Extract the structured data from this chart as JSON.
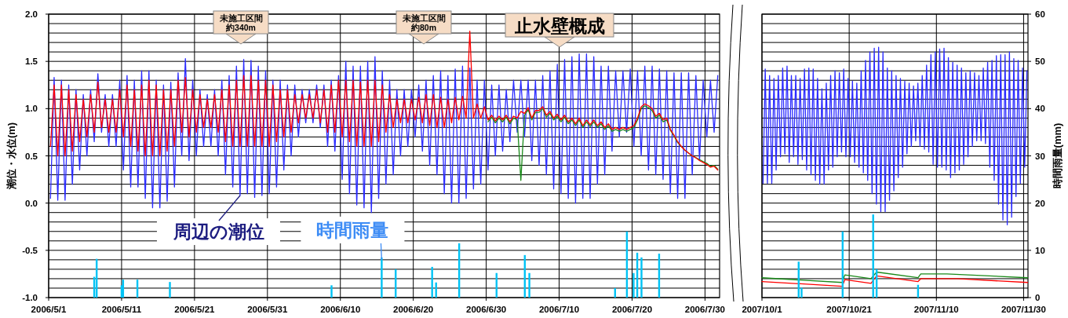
{
  "chart_data": [
    {
      "type": "line",
      "ylabel": "潮位・水位(m)",
      "xlim": [
        "2006-05-01",
        "2006-08-01"
      ],
      "ylim": [
        -1,
        2
      ],
      "y2lim": [
        0,
        60
      ],
      "grid": true,
      "xticks": [
        {
          "value": "2006-05-01",
          "label": "2006/5/1"
        },
        {
          "value": "2006-05-11",
          "label": "2006/5/11"
        },
        {
          "value": "2006-05-21",
          "label": "2006/5/21"
        },
        {
          "value": "2006-05-31",
          "label": "2006/5/31"
        },
        {
          "value": "2006-06-10",
          "label": "2006/6/10"
        },
        {
          "value": "2006-06-20",
          "label": "2006/6/20"
        },
        {
          "value": "2006-06-30",
          "label": "2006/6/30"
        },
        {
          "value": "2006-07-10",
          "label": "2006/7/10"
        },
        {
          "value": "2006-07-20",
          "label": "2006/7/20"
        },
        {
          "value": "2006-07-30",
          "label": "2006/7/30"
        }
      ],
      "yticks": [
        {
          "value": -1,
          "label": "-1.0"
        },
        {
          "value": -0.9,
          "label": null
        },
        {
          "value": -0.8,
          "label": null
        },
        {
          "value": -0.7,
          "label": null
        },
        {
          "value": -0.6,
          "label": null
        },
        {
          "value": -0.5,
          "label": "-0.5"
        },
        {
          "value": -0.4,
          "label": null
        },
        {
          "value": -0.3,
          "label": null
        },
        {
          "value": -0.2,
          "label": null
        },
        {
          "value": -0.1,
          "label": null
        },
        {
          "value": 0,
          "label": "0.0"
        },
        {
          "value": 0.1,
          "label": null
        },
        {
          "value": 0.2,
          "label": null
        },
        {
          "value": 0.3,
          "label": null
        },
        {
          "value": 0.4,
          "label": null
        },
        {
          "value": 0.5,
          "label": "0.5"
        },
        {
          "value": 0.6,
          "label": null
        },
        {
          "value": 0.7,
          "label": null
        },
        {
          "value": 0.8,
          "label": null
        },
        {
          "value": 0.9,
          "label": null
        },
        {
          "value": 1,
          "label": "1.0"
        },
        {
          "value": 1.1,
          "label": null
        },
        {
          "value": 1.2,
          "label": null
        },
        {
          "value": 1.3,
          "label": null
        },
        {
          "value": 1.4,
          "label": null
        },
        {
          "value": 1.5,
          "label": "1.5"
        },
        {
          "value": 1.6,
          "label": null
        },
        {
          "value": 1.7,
          "label": null
        },
        {
          "value": 1.8,
          "label": null
        },
        {
          "value": 1.9,
          "label": null
        },
        {
          "value": 2,
          "label": "2.0"
        }
      ],
      "x": [
        "2006-05-01T06:00",
        "2006-05-01T18:00",
        "2006-05-02T06:00",
        "2006-05-02T18:00",
        "2006-05-03T06:00",
        "2006-05-03T18:00",
        "2006-05-04T06:00",
        "2006-05-04T18:00",
        "2006-05-05T06:00",
        "2006-05-05T18:00",
        "2006-05-06T06:00",
        "2006-05-06T18:00",
        "2006-05-07T06:00",
        "2006-05-07T18:00",
        "2006-05-08T06:00",
        "2006-05-08T18:00",
        "2006-05-09T06:00",
        "2006-05-09T18:00",
        "2006-05-10T06:00",
        "2006-05-10T18:00",
        "2006-05-11T06:00",
        "2006-05-11T18:00",
        "2006-05-12T06:00",
        "2006-05-12T18:00",
        "2006-05-13T06:00",
        "2006-05-13T18:00",
        "2006-05-14T06:00",
        "2006-05-14T18:00",
        "2006-05-15T06:00",
        "2006-05-15T18:00",
        "2006-05-16T06:00",
        "2006-05-16T18:00",
        "2006-05-17T06:00",
        "2006-05-17T18:00",
        "2006-05-18T06:00",
        "2006-05-18T18:00",
        "2006-05-19T06:00",
        "2006-05-19T18:00",
        "2006-05-20T06:00",
        "2006-05-20T18:00",
        "2006-05-21T06:00",
        "2006-05-21T18:00",
        "2006-05-22T06:00",
        "2006-05-22T18:00",
        "2006-05-23T06:00",
        "2006-05-23T18:00",
        "2006-05-24T06:00",
        "2006-05-24T18:00",
        "2006-05-25T06:00",
        "2006-05-25T18:00",
        "2006-05-26T06:00",
        "2006-05-26T18:00",
        "2006-05-27T06:00",
        "2006-05-27T18:00",
        "2006-05-28T06:00",
        "2006-05-28T18:00",
        "2006-05-29T06:00",
        "2006-05-29T18:00",
        "2006-05-30T06:00",
        "2006-05-30T18:00",
        "2006-05-31T06:00",
        "2006-05-31T18:00",
        "2006-06-01T06:00",
        "2006-06-01T18:00",
        "2006-06-02T06:00",
        "2006-06-02T18:00",
        "2006-06-03T06:00",
        "2006-06-03T18:00",
        "2006-06-04T06:00",
        "2006-06-04T18:00",
        "2006-06-05T06:00",
        "2006-06-05T18:00",
        "2006-06-06T06:00",
        "2006-06-06T18:00",
        "2006-06-07T06:00",
        "2006-06-07T18:00",
        "2006-06-08T06:00",
        "2006-06-08T18:00",
        "2006-06-09T06:00",
        "2006-06-09T18:00",
        "2006-06-10T06:00",
        "2006-06-10T18:00",
        "2006-06-11T06:00",
        "2006-06-11T18:00",
        "2006-06-12T06:00",
        "2006-06-12T18:00",
        "2006-06-13T06:00",
        "2006-06-13T18:00",
        "2006-06-14T06:00",
        "2006-06-14T18:00",
        "2006-06-15T06:00",
        "2006-06-15T18:00",
        "2006-06-16T06:00",
        "2006-06-16T18:00",
        "2006-06-17T06:00",
        "2006-06-17T18:00",
        "2006-06-18T06:00",
        "2006-06-18T18:00",
        "2006-06-19T06:00",
        "2006-06-19T18:00",
        "2006-06-20T06:00",
        "2006-06-20T18:00",
        "2006-06-21T06:00",
        "2006-06-21T18:00",
        "2006-06-22T06:00",
        "2006-06-22T18:00",
        "2006-06-23T06:00",
        "2006-06-23T18:00",
        "2006-06-24T06:00",
        "2006-06-24T18:00",
        "2006-06-25T06:00",
        "2006-06-25T18:00",
        "2006-06-26T06:00",
        "2006-06-26T18:00",
        "2006-06-27T06:00",
        "2006-06-27T18:00",
        "2006-06-28T06:00",
        "2006-06-28T18:00",
        "2006-06-29T06:00",
        "2006-06-29T18:00",
        "2006-06-30T06:00",
        "2006-06-30T18:00",
        "2006-07-01T06:00",
        "2006-07-01T18:00",
        "2006-07-02T06:00",
        "2006-07-02T18:00",
        "2006-07-03T06:00",
        "2006-07-03T18:00",
        "2006-07-04T06:00",
        "2006-07-04T18:00",
        "2006-07-05T06:00",
        "2006-07-05T18:00",
        "2006-07-06T06:00",
        "2006-07-06T18:00",
        "2006-07-07T06:00",
        "2006-07-07T18:00",
        "2006-07-08T06:00",
        "2006-07-08T18:00",
        "2006-07-09T06:00",
        "2006-07-09T18:00",
        "2006-07-10T06:00",
        "2006-07-10T18:00",
        "2006-07-11T06:00",
        "2006-07-11T18:00",
        "2006-07-12T06:00",
        "2006-07-12T18:00",
        "2006-07-13T06:00",
        "2006-07-13T18:00",
        "2006-07-14T06:00",
        "2006-07-14T18:00",
        "2006-07-15T06:00",
        "2006-07-15T18:00",
        "2006-07-16T06:00",
        "2006-07-16T18:00",
        "2006-07-17T06:00",
        "2006-07-17T18:00",
        "2006-07-18T06:00",
        "2006-07-18T18:00",
        "2006-07-19T06:00",
        "2006-07-19T18:00",
        "2006-07-20T06:00",
        "2006-07-20T18:00",
        "2006-07-21T06:00",
        "2006-07-21T18:00",
        "2006-07-22T06:00",
        "2006-07-22T18:00",
        "2006-07-23T06:00",
        "2006-07-23T18:00",
        "2006-07-24T06:00",
        "2006-07-24T18:00",
        "2006-07-25T06:00",
        "2006-07-25T18:00",
        "2006-07-26T06:00",
        "2006-07-26T18:00",
        "2006-07-27T06:00",
        "2006-07-27T18:00",
        "2006-07-28T06:00",
        "2006-07-28T18:00",
        "2006-07-29T06:00",
        "2006-07-29T18:00",
        "2006-07-30T06:00",
        "2006-07-30T18:00",
        "2006-07-31T06:00",
        "2006-07-31T18:00"
      ],
      "series": [
        {
          "color": "#2b2bff",
          "values": [
            0.05,
            1.33,
            0.03,
            1.3,
            0.03,
            1.25,
            0.2,
            1.2,
            0.35,
            1.15,
            0.5,
            1.2,
            0.65,
            1.37,
            0.75,
            1.15,
            0.6,
            1.15,
            0.6,
            1.3,
            0.35,
            1.35,
            0.17,
            1.3,
            0.17,
            1.4,
            0.05,
            1.4,
            -0.05,
            1.3,
            -0.05,
            1.25,
            0.02,
            1.28,
            0.17,
            1.38,
            0.5,
            1.53,
            0.45,
            1.3,
            0.5,
            1.2,
            0.6,
            1.15,
            0.6,
            1.2,
            0.5,
            1.3,
            0.3,
            1.35,
            0.17,
            1.45,
            0.08,
            1.52,
            0.1,
            1.51,
            0.06,
            1.45,
            0.08,
            1.4,
            0.1,
            1.3,
            0.17,
            1.3,
            0.35,
            1.25,
            0.5,
            1.25,
            0.7,
            1.2,
            0.85,
            1.2,
            0.85,
            1.25,
            0.8,
            1.25,
            0.6,
            1.3,
            0.55,
            1.35,
            0.25,
            1.5,
            0.1,
            1.45,
            -0.02,
            1.45,
            -0.05,
            1.5,
            -0.1,
            1.55,
            0.05,
            1.4,
            0.2,
            1.3,
            0.3,
            1.2,
            0.5,
            1.2,
            0.6,
            1.2,
            0.7,
            1.25,
            0.55,
            1.3,
            0.4,
            1.35,
            0.3,
            1.4,
            0.1,
            1.35,
            0.0,
            1.42,
            0.0,
            1.45,
            0.05,
            1.43,
            0.15,
            1.3,
            0.2,
            1.3,
            0.35,
            1.25,
            0.5,
            1.25,
            0.55,
            1.2,
            0.65,
            1.3,
            0.75,
            1.3,
            0.7,
            1.3,
            0.45,
            1.3,
            0.4,
            1.35,
            0.3,
            1.4,
            0.15,
            1.47,
            0.1,
            1.52,
            0.05,
            1.55,
            0.0,
            1.58,
            0.05,
            1.58,
            0.05,
            1.55,
            0.2,
            1.45,
            0.3,
            1.45,
            0.55,
            1.4,
            0.7,
            1.4,
            0.75,
            1.42,
            0.6,
            1.4,
            0.5,
            1.45,
            0.35,
            1.45,
            0.3,
            1.42,
            0.25,
            1.4,
            0.1,
            1.38,
            0.05,
            1.38,
            0.05,
            1.38,
            0.3,
            1.35,
            0.45,
            1.3,
            0.7,
            1.3,
            0.75,
            1.35
          ]
        },
        {
          "color": "#1a8a1a",
          "values": [
            null,
            null,
            null,
            null,
            null,
            null,
            null,
            null,
            null,
            null,
            null,
            null,
            null,
            null,
            null,
            null,
            null,
            null,
            null,
            null,
            null,
            null,
            null,
            null,
            null,
            null,
            null,
            null,
            null,
            null,
            null,
            null,
            null,
            null,
            null,
            null,
            null,
            null,
            null,
            null,
            null,
            null,
            null,
            null,
            null,
            null,
            null,
            null,
            null,
            null,
            null,
            null,
            null,
            null,
            null,
            null,
            null,
            null,
            null,
            null,
            null,
            null,
            null,
            null,
            null,
            null,
            null,
            null,
            null,
            null,
            null,
            null,
            null,
            null,
            null,
            null,
            null,
            null,
            null,
            null,
            null,
            null,
            null,
            null,
            null,
            null,
            null,
            null,
            null,
            null,
            null,
            null,
            null,
            null,
            null,
            null,
            null,
            null,
            null,
            null,
            null,
            null,
            null,
            null,
            null,
            null,
            null,
            null,
            null,
            null,
            null,
            null,
            null,
            null,
            null,
            null,
            null,
            null,
            null,
            null,
            0.86,
            0.91,
            0.85,
            0.9,
            0.86,
            0.91,
            0.84,
            0.9,
            0.88,
            0.24,
            0.93,
            0.99,
            0.88,
            0.96,
            0.96,
            1.0,
            0.91,
            0.95,
            0.88,
            0.92,
            0.86,
            0.91,
            0.84,
            0.88,
            0.82,
            0.88,
            0.8,
            0.86,
            0.81,
            0.86,
            0.8,
            0.84,
            0.78,
            0.82,
            0.76,
            0.78,
            0.76,
            0.78,
            0.76,
            0.78,
            0.8,
            0.88,
            1.0,
            1.03,
            1.01,
            0.98,
            0.9,
            0.93,
            0.86,
            0.88,
            0.77,
            0.71,
            0.64,
            0.6,
            0.56,
            0.53,
            0.5,
            0.48,
            0.46,
            0.44,
            0.42,
            0.39,
            0.4,
            0.36
          ]
        },
        {
          "color": "#ff0000",
          "values": [
            0.6,
            1.25,
            0.5,
            1.25,
            0.5,
            1.2,
            0.55,
            1.15,
            0.65,
            1.1,
            0.7,
            1.15,
            0.75,
            1.28,
            0.8,
            1.1,
            0.75,
            1.1,
            0.75,
            1.2,
            0.7,
            1.25,
            0.6,
            1.2,
            0.55,
            1.25,
            0.5,
            1.3,
            0.5,
            1.25,
            0.5,
            1.2,
            0.55,
            1.2,
            0.6,
            1.3,
            0.75,
            1.33,
            0.7,
            1.2,
            0.75,
            1.15,
            0.8,
            1.1,
            0.8,
            1.15,
            0.75,
            1.2,
            0.65,
            1.25,
            0.6,
            1.3,
            0.6,
            1.35,
            0.6,
            1.35,
            0.6,
            1.3,
            0.6,
            1.3,
            0.6,
            1.25,
            0.65,
            1.2,
            0.7,
            1.2,
            0.75,
            1.15,
            0.85,
            1.15,
            0.9,
            1.15,
            0.9,
            1.2,
            0.85,
            1.2,
            0.75,
            1.25,
            0.75,
            1.3,
            0.7,
            1.3,
            0.65,
            1.3,
            0.6,
            1.28,
            0.6,
            1.3,
            0.6,
            1.3,
            0.65,
            1.25,
            0.75,
            1.15,
            0.8,
            1.1,
            0.85,
            1.1,
            0.85,
            1.1,
            0.88,
            1.12,
            0.85,
            1.15,
            0.82,
            1.15,
            0.8,
            1.12,
            0.8,
            1.1,
            0.85,
            1.12,
            0.88,
            1.13,
            0.9,
            1.82,
            0.9,
            1.05,
            0.9,
            1.02,
            0.88,
            0.93,
            0.87,
            0.92,
            0.88,
            0.93,
            0.86,
            0.92,
            0.9,
            0.97,
            0.95,
            1.01,
            0.9,
            0.98,
            0.98,
            1.02,
            0.93,
            0.97,
            0.9,
            0.94,
            0.88,
            0.93,
            0.86,
            0.9,
            0.84,
            0.9,
            0.82,
            0.88,
            0.83,
            0.88,
            0.82,
            0.86,
            0.8,
            0.84,
            0.78,
            0.8,
            0.78,
            0.8,
            0.78,
            0.8,
            0.82,
            0.9,
            1.02,
            1.05,
            1.03,
            1.0,
            0.92,
            0.95,
            0.88,
            0.9,
            0.78,
            0.72,
            0.65,
            0.6,
            0.56,
            0.53,
            0.5,
            0.48,
            0.45,
            0.43,
            0.41,
            0.38,
            0.39,
            0.35
          ]
        },
        {
          "type": "bar",
          "axis": "y2",
          "color": "#00c3f5",
          "x": [
            "2006-05-07T06:00",
            "2006-05-07T14:00",
            "2006-05-11T00:00",
            "2006-05-11T05:00",
            "2006-05-13T04:00",
            "2006-05-17T15:00",
            "2006-06-08T19:00",
            "2006-06-15T16:00",
            "2006-06-17T14:00",
            "2006-06-22T14:00",
            "2006-06-23T03:00",
            "2006-06-26T07:00",
            "2006-07-01T10:00",
            "2006-07-05T07:00",
            "2006-07-05T22:00",
            "2006-07-17T16:00",
            "2006-07-19T07:00",
            "2006-07-20T05:00",
            "2006-07-20T17:00",
            "2006-07-21T07:00",
            "2006-07-23T17:00"
          ],
          "values": [
            4.4,
            8.2,
            2.6,
            3.8,
            3.8,
            3.3,
            2.6,
            8.5,
            6.0,
            6.5,
            3.2,
            11.5,
            5.2,
            9.0,
            5.2,
            2.0,
            14.0,
            5.2,
            9.5,
            8.5,
            9.3
          ]
        }
      ],
      "annotations": [
        "未施工区間約340m",
        "未施工区間約80m",
        "止水壁概成",
        {
          "text": "周辺の潮位",
          "x": "2006-05-27T06:00",
          "y": 0.08
        },
        {
          "text": "時間雨量",
          "x": "2006-06-15T16:00",
          "y": -0.6
        }
      ]
    },
    {
      "type": "line",
      "y2label": "時間雨量(mm)",
      "xlim": [
        "2007-10-01",
        "2007-12-01"
      ],
      "ylim": [
        -1,
        2
      ],
      "y2lim": [
        0,
        60
      ],
      "grid": true,
      "xticks": [
        {
          "value": "2007-10-01",
          "label": "2007/10/1"
        },
        {
          "value": "2007-10-21",
          "label": "2007/10/21"
        },
        {
          "value": "2007-11-10",
          "label": "2007/11/10"
        },
        {
          "value": "2007-11-30",
          "label": "2007/11/30"
        }
      ],
      "y2ticks": [
        0,
        {
          "value": 2,
          "label": null
        },
        {
          "value": 4,
          "label": null
        },
        {
          "value": 6,
          "label": null
        },
        {
          "value": 8,
          "label": null
        },
        10,
        {
          "value": 12,
          "label": null
        },
        {
          "value": 14,
          "label": null
        },
        {
          "value": 16,
          "label": null
        },
        {
          "value": 18,
          "label": null
        },
        20,
        {
          "value": 22,
          "label": null
        },
        {
          "value": 24,
          "label": null
        },
        {
          "value": 26,
          "label": null
        },
        {
          "value": 28,
          "label": null
        },
        30,
        {
          "value": 32,
          "label": null
        },
        {
          "value": 34,
          "label": null
        },
        {
          "value": 36,
          "label": null
        },
        {
          "value": 38,
          "label": null
        },
        40,
        {
          "value": 42,
          "label": null
        },
        {
          "value": 44,
          "label": null
        },
        {
          "value": 46,
          "label": null
        },
        {
          "value": 48,
          "label": null
        },
        50,
        {
          "value": 52,
          "label": null
        },
        {
          "value": 54,
          "label": null
        },
        {
          "value": 56,
          "label": null
        },
        {
          "value": 58,
          "label": null
        },
        60
      ],
      "x": [
        "2007-10-01T06:00",
        "2007-10-01T18:00",
        "2007-10-02T06:00",
        "2007-10-02T18:00",
        "2007-10-03T06:00",
        "2007-10-03T18:00",
        "2007-10-04T06:00",
        "2007-10-04T18:00",
        "2007-10-05T06:00",
        "2007-10-05T18:00",
        "2007-10-06T06:00",
        "2007-10-06T18:00",
        "2007-10-07T06:00",
        "2007-10-07T18:00",
        "2007-10-08T06:00",
        "2007-10-08T18:00",
        "2007-10-09T06:00",
        "2007-10-09T18:00",
        "2007-10-10T06:00",
        "2007-10-10T18:00",
        "2007-10-11T06:00",
        "2007-10-11T18:00",
        "2007-10-12T06:00",
        "2007-10-12T18:00",
        "2007-10-13T06:00",
        "2007-10-13T18:00",
        "2007-10-14T06:00",
        "2007-10-14T18:00",
        "2007-10-15T06:00",
        "2007-10-15T18:00",
        "2007-10-16T06:00",
        "2007-10-16T18:00",
        "2007-10-17T06:00",
        "2007-10-17T18:00",
        "2007-10-18T06:00",
        "2007-10-18T18:00",
        "2007-10-19T06:00",
        "2007-10-19T18:00",
        "2007-10-20T06:00",
        "2007-10-20T18:00",
        "2007-10-21T06:00",
        "2007-10-21T18:00",
        "2007-10-22T06:00",
        "2007-10-22T18:00",
        "2007-10-23T06:00",
        "2007-10-23T18:00",
        "2007-10-24T06:00",
        "2007-10-24T18:00",
        "2007-10-25T06:00",
        "2007-10-25T18:00",
        "2007-10-26T06:00",
        "2007-10-26T18:00",
        "2007-10-27T06:00",
        "2007-10-27T18:00",
        "2007-10-28T06:00",
        "2007-10-28T18:00",
        "2007-10-29T06:00",
        "2007-10-29T18:00",
        "2007-10-30T06:00",
        "2007-10-30T18:00",
        "2007-10-31T06:00",
        "2007-10-31T18:00",
        "2007-11-01T06:00",
        "2007-11-01T18:00",
        "2007-11-02T06:00",
        "2007-11-02T18:00",
        "2007-11-03T06:00",
        "2007-11-03T18:00",
        "2007-11-04T06:00",
        "2007-11-04T18:00",
        "2007-11-05T06:00",
        "2007-11-05T18:00",
        "2007-11-06T06:00",
        "2007-11-06T18:00",
        "2007-11-07T06:00",
        "2007-11-07T18:00",
        "2007-11-08T06:00",
        "2007-11-08T18:00",
        "2007-11-09T06:00",
        "2007-11-09T18:00",
        "2007-11-10T06:00",
        "2007-11-10T18:00",
        "2007-11-11T06:00",
        "2007-11-11T18:00",
        "2007-11-12T06:00",
        "2007-11-12T18:00",
        "2007-11-13T06:00",
        "2007-11-13T18:00",
        "2007-11-14T06:00",
        "2007-11-14T18:00",
        "2007-11-15T06:00",
        "2007-11-15T18:00",
        "2007-11-16T06:00",
        "2007-11-16T18:00",
        "2007-11-17T06:00",
        "2007-11-17T18:00",
        "2007-11-18T06:00",
        "2007-11-18T18:00",
        "2007-11-19T06:00",
        "2007-11-19T18:00",
        "2007-11-20T06:00",
        "2007-11-20T18:00",
        "2007-11-21T06:00",
        "2007-11-21T18:00",
        "2007-11-22T06:00",
        "2007-11-22T18:00",
        "2007-11-23T06:00",
        "2007-11-23T18:00",
        "2007-11-24T06:00",
        "2007-11-24T18:00",
        "2007-11-25T06:00",
        "2007-11-25T18:00",
        "2007-11-26T06:00",
        "2007-11-26T18:00",
        "2007-11-27T06:00",
        "2007-11-27T18:00",
        "2007-11-28T06:00",
        "2007-11-28T18:00",
        "2007-11-29T06:00",
        "2007-11-29T18:00",
        "2007-11-30T06:00",
        "2007-11-30T18:00"
      ],
      "series": [
        {
          "color": "#2b2bff",
          "values": [
            0.21,
            1.42,
            0.21,
            1.35,
            0.21,
            1.32,
            0.35,
            1.35,
            0.49,
            1.43,
            0.52,
            1.45,
            0.43,
            1.35,
            0.49,
            1.35,
            0.41,
            1.32,
            0.46,
            1.42,
            0.35,
            1.43,
            0.3,
            1.42,
            0.24,
            1.32,
            0.2,
            1.21,
            0.2,
            1.27,
            0.35,
            1.35,
            0.38,
            1.4,
            0.49,
            1.38,
            0.54,
            1.42,
            0.49,
            1.32,
            0.49,
            1.29,
            0.43,
            1.27,
            0.38,
            1.4,
            0.32,
            1.51,
            0.24,
            1.6,
            0.1,
            1.64,
            -0.01,
            1.65,
            -0.09,
            1.6,
            -0.09,
            1.43,
            0.03,
            1.4,
            0.13,
            1.35,
            0.27,
            1.32,
            0.38,
            1.29,
            0.52,
            1.27,
            0.6,
            1.24,
            0.66,
            1.27,
            0.6,
            1.35,
            0.57,
            1.46,
            0.54,
            1.57,
            0.41,
            1.6,
            0.38,
            1.63,
            0.38,
            1.64,
            0.35,
            1.54,
            0.27,
            1.49,
            0.32,
            1.46,
            0.35,
            1.43,
            0.41,
            1.38,
            0.49,
            1.4,
            0.6,
            1.38,
            0.66,
            1.35,
            0.66,
            1.43,
            0.63,
            1.49,
            0.38,
            1.51,
            0.24,
            1.56,
            -0.01,
            1.57,
            -0.18,
            1.57,
            -0.23,
            1.6,
            -0.15,
            1.53,
            0.07,
            1.51,
            0.21,
            1.43,
            0.38,
            1.4
          ]
        },
        {
          "color": "#1a8a1a",
          "x": [
            "2007-10-01",
            "2007-10-19T10:00",
            "2007-10-20",
            "2007-10-26",
            "2007-10-27T07:00",
            "2007-11-05T19:00",
            "2007-11-06T10:00",
            "2007-11-12T10:00",
            "2007-11-30T22:00"
          ],
          "values": [
            -0.79,
            -0.84,
            -0.76,
            -0.8,
            -0.73,
            -0.79,
            -0.75,
            -0.75,
            -0.79
          ]
        },
        {
          "color": "#ff0000",
          "x": [
            "2007-10-01",
            "2007-10-19T10:00",
            "2007-10-20",
            "2007-10-26",
            "2007-10-27T07:00",
            "2007-11-05T19:00",
            "2007-11-06T10:00",
            "2007-11-14T19:00",
            "2007-11-30T22:00"
          ],
          "values": [
            -0.83,
            -0.88,
            -0.81,
            -0.85,
            -0.77,
            -0.83,
            -0.8,
            -0.8,
            -0.84
          ]
        },
        {
          "type": "bar",
          "axis": "y2",
          "color": "#00c3f5",
          "x": [
            "2007-10-09T10:00",
            "2007-10-10T02:00",
            "2007-10-19T12:00",
            "2007-10-26T12:00",
            "2007-10-27T07:00",
            "2007-11-05T19:00"
          ],
          "values": [
            7.6,
            2.1,
            14.0,
            17.6,
            6.0,
            2.7
          ]
        }
      ]
    }
  ]
}
